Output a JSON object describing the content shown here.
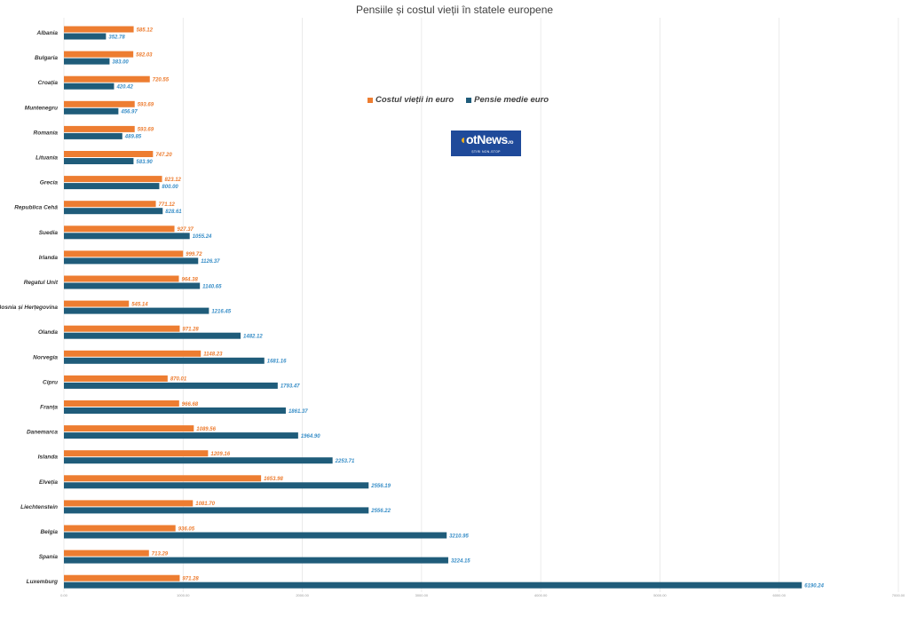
{
  "chart_data": {
    "type": "bar",
    "orientation": "horizontal",
    "title": "Pensiile și costul vieții în statele europene",
    "categories": [
      "Albania",
      "Bulgaria",
      "Croația",
      "Muntenegru",
      "Romania",
      "Lituania",
      "Grecia",
      "Republica Cehă",
      "Suedia",
      "Irlanda",
      "Regatul Unit",
      "Bosnia și Herțegovina",
      "Olanda",
      "Norvegia",
      "Cipru",
      "Franța",
      "Danemarca",
      "Islanda",
      "Elveția",
      "Liechtenstein",
      "Belgia",
      "Spania",
      "Luxemburg"
    ],
    "series": [
      {
        "name": "Costul vieții  in euro",
        "color": "#ed7d31",
        "label_color": "#ed7d31",
        "values": [
          585.12,
          582.03,
          720.55,
          593.69,
          593.69,
          747.2,
          823.12,
          771.12,
          927.37,
          999.72,
          964.38,
          545.14,
          971.28,
          1148.23,
          870.01,
          966.68,
          1089.56,
          1209.16,
          1653.98,
          1081.7,
          936.05,
          713.29,
          971.28
        ],
        "labels": [
          "585.12",
          "582.03",
          "720.55",
          "593.69",
          "593.69",
          "747.20",
          "823.12",
          "771.12",
          "927.37",
          "999.72",
          "964.38",
          "545.14",
          "971.28",
          "1148.23",
          "870.01",
          "966.68",
          "1089.56",
          "1209.16",
          "1653.98",
          "1081.70",
          "936.05",
          "713.29",
          "971.28"
        ]
      },
      {
        "name": "Pensie medie euro",
        "color": "#1f5c7a",
        "label_color": "#3a8fc8",
        "values": [
          352.78,
          383.0,
          420.42,
          456.97,
          489.85,
          583.9,
          800.0,
          828.61,
          1055.24,
          1126.37,
          1140.65,
          1216.45,
          1482.12,
          1681.16,
          1793.47,
          1861.37,
          1964.9,
          2253.71,
          2556.19,
          2556.22,
          3210.95,
          3224.15,
          6190.24
        ],
        "labels": [
          "352.78",
          "383.00",
          "420.42",
          "456.97",
          "489.85",
          "583.90",
          "800.00",
          "828.61",
          "1055.24",
          "1126.37",
          "1140.65",
          "1216.45",
          "1482.12",
          "1681.16",
          "1793.47",
          "1861.37",
          "1964.90",
          "2253.71",
          "2556.19",
          "2556.22",
          "3210.95",
          "3224.15",
          "6190.24"
        ]
      }
    ],
    "xlim": [
      0,
      7000
    ],
    "x_ticks": [
      0,
      1000,
      2000,
      3000,
      4000,
      5000,
      6000,
      7000
    ],
    "x_tick_labels": [
      "0.00",
      "1000.00",
      "2000.00",
      "3000.00",
      "4000.00",
      "5000.00",
      "6000.00",
      "7000.00"
    ],
    "grid": "vertical",
    "legend_position": "inside-top-center"
  },
  "legend": {
    "items": [
      {
        "label": "Costul vieții  in euro",
        "color": "#ed7d31"
      },
      {
        "label": "Pensie medie euro",
        "color": "#1f5c7a"
      }
    ]
  },
  "logo": {
    "text_main": "otNews",
    "text_suffix": ".ro",
    "text_sub": "ȘTIRI NON-STOP"
  }
}
